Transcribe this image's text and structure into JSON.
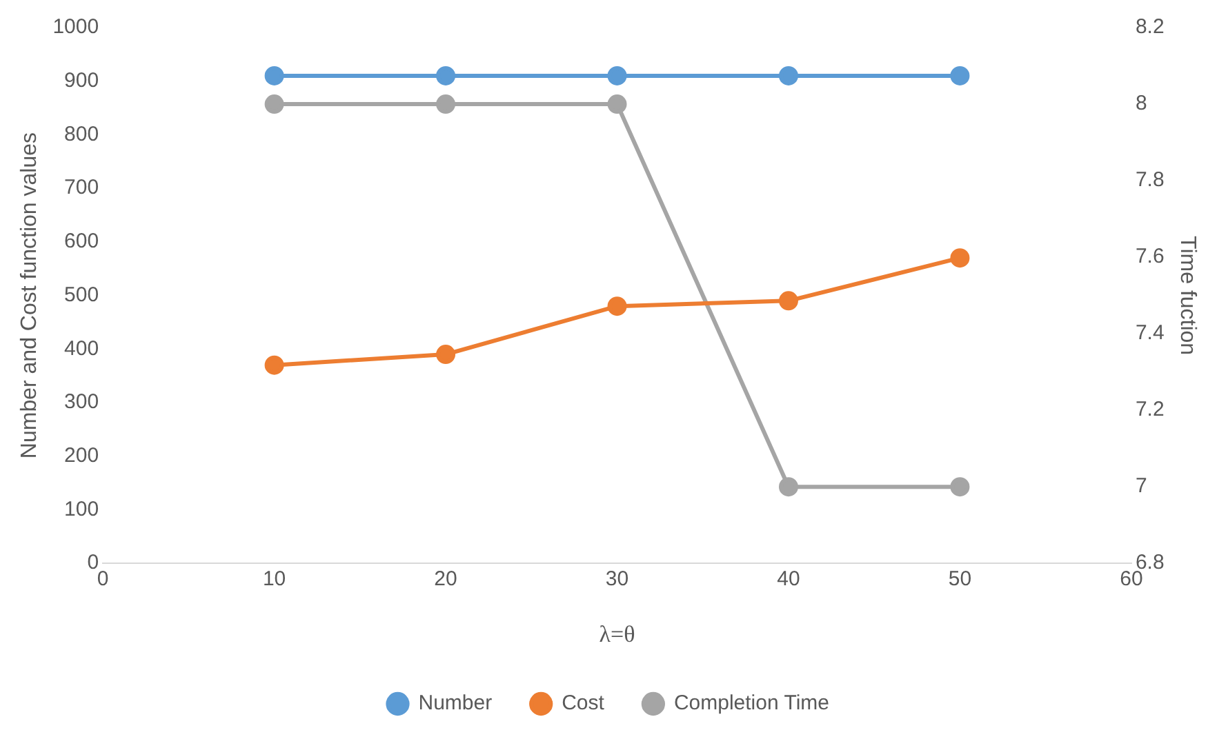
{
  "chart_data": {
    "type": "line",
    "xlabel": "λ=θ",
    "ylabel": "Number and Cost function values",
    "y2label": "Time fuction",
    "x": [
      10,
      20,
      30,
      40,
      50
    ],
    "series": [
      {
        "name": "Number",
        "color": "#5b9bd5",
        "values": [
          910,
          910,
          910,
          910,
          910
        ]
      },
      {
        "name": "Cost",
        "color": "#ed7d31",
        "values": [
          370,
          390,
          480,
          490,
          570
        ]
      },
      {
        "name": "Completion Time",
        "color": "#a5a5a5",
        "values": [
          8,
          8,
          8,
          7,
          7
        ],
        "axis": "y2"
      }
    ],
    "xlim": [
      0,
      60
    ],
    "xticks": [
      0,
      10,
      20,
      30,
      40,
      50,
      60
    ],
    "ylim": [
      0,
      1000
    ],
    "yticks": [
      0,
      100,
      200,
      300,
      400,
      500,
      600,
      700,
      800,
      900,
      1000
    ],
    "y2lim": [
      6.8,
      8.2
    ],
    "y2ticks": [
      6.8,
      7,
      7.2,
      7.4,
      7.6,
      7.8,
      8,
      8.2
    ],
    "grid": false,
    "legend": "bottom",
    "marker": "circle",
    "line_style": "solid"
  }
}
